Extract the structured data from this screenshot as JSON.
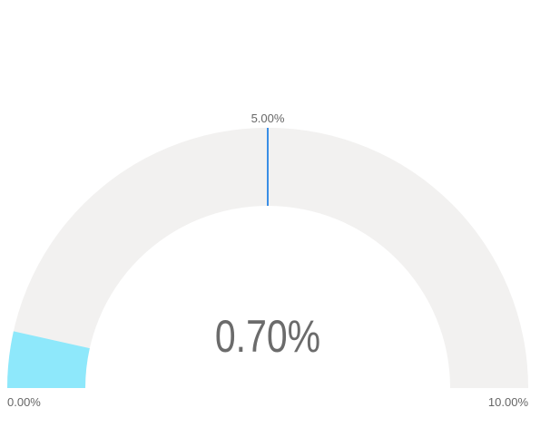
{
  "chart_data": {
    "type": "gauge",
    "value": 0.7,
    "value_label": "0.70%",
    "min": 0,
    "max": 10,
    "min_label": "0.00%",
    "max_label": "10.00%",
    "target": 5,
    "target_label": "5.00%",
    "colors": {
      "track": "#f2f1f0",
      "fill": "#8ee8fb",
      "target": "#3a8ee6",
      "value_text": "#6b6b6b",
      "label_text": "#666666"
    }
  }
}
